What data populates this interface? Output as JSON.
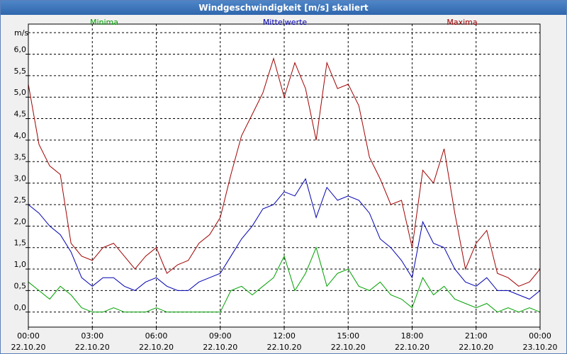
{
  "chart_data": {
    "type": "line",
    "title": "Windgeschwindigkeit [m/s] skaliert",
    "ylabel": "m/s",
    "xlabel": "",
    "ylim": [
      -0.35,
      6.7
    ],
    "xlim": [
      0,
      24
    ],
    "grid": true,
    "legend_position": "top",
    "yticks": [
      "0,0",
      "0,5",
      "1,0",
      "1,5",
      "2,0",
      "2,5",
      "3,0",
      "3,5",
      "4,0",
      "4,5",
      "5,0",
      "5,5",
      "6,0"
    ],
    "xticks": [
      {
        "time": "00:00",
        "date": "22.10.20"
      },
      {
        "time": "03:00",
        "date": "22.10.20"
      },
      {
        "time": "06:00",
        "date": "22.10.20"
      },
      {
        "time": "09:00",
        "date": "22.10.20"
      },
      {
        "time": "12:00",
        "date": "22.10.20"
      },
      {
        "time": "15:00",
        "date": "22.10.20"
      },
      {
        "time": "18:00",
        "date": "22.10.20"
      },
      {
        "time": "21:00",
        "date": "22.10.20"
      },
      {
        "time": "00:00",
        "date": "23.10.20"
      }
    ],
    "series": [
      {
        "name": "Minima",
        "color": "#00a000",
        "x": [
          0,
          0.5,
          1,
          1.5,
          2,
          2.5,
          3,
          3.5,
          4,
          4.5,
          5,
          5.5,
          6,
          6.5,
          7,
          7.5,
          8,
          8.5,
          9,
          9.5,
          10,
          10.5,
          11,
          11.5,
          12,
          12.5,
          13,
          13.5,
          14,
          14.5,
          15,
          15.5,
          16,
          16.5,
          17,
          17.5,
          18,
          18.5,
          19,
          19.5,
          20,
          20.5,
          21,
          21.5,
          22,
          22.5,
          23,
          23.5,
          24
        ],
        "values": [
          0.7,
          0.5,
          0.3,
          0.6,
          0.4,
          0.1,
          0.0,
          0.0,
          0.1,
          0.0,
          0.0,
          0.0,
          0.1,
          0.0,
          0.0,
          0.0,
          0.0,
          0.0,
          0.0,
          0.5,
          0.6,
          0.4,
          0.6,
          0.8,
          1.3,
          0.5,
          0.9,
          1.5,
          0.6,
          0.9,
          1.0,
          0.6,
          0.5,
          0.7,
          0.4,
          0.3,
          0.1,
          0.8,
          0.4,
          0.6,
          0.3,
          0.2,
          0.1,
          0.2,
          0.0,
          0.1,
          0.0,
          0.1,
          0.0
        ]
      },
      {
        "name": "Mittelwerte",
        "color": "#0000b0",
        "x": [
          0,
          0.5,
          1,
          1.5,
          2,
          2.5,
          3,
          3.5,
          4,
          4.5,
          5,
          5.5,
          6,
          6.5,
          7,
          7.5,
          8,
          8.5,
          9,
          9.5,
          10,
          10.5,
          11,
          11.5,
          12,
          12.5,
          13,
          13.5,
          14,
          14.5,
          15,
          15.5,
          16,
          16.5,
          17,
          17.5,
          18,
          18.5,
          19,
          19.5,
          20,
          20.5,
          21,
          21.5,
          22,
          22.5,
          23,
          23.5,
          24
        ],
        "values": [
          2.5,
          2.3,
          2.0,
          1.8,
          1.4,
          0.8,
          0.6,
          0.8,
          0.8,
          0.6,
          0.5,
          0.7,
          0.8,
          0.6,
          0.5,
          0.5,
          0.7,
          0.8,
          0.9,
          1.3,
          1.7,
          2.0,
          2.4,
          2.5,
          2.8,
          2.7,
          3.1,
          2.2,
          2.9,
          2.6,
          2.7,
          2.6,
          2.3,
          1.7,
          1.5,
          1.2,
          0.8,
          2.1,
          1.6,
          1.5,
          1.0,
          0.7,
          0.6,
          0.8,
          0.5,
          0.5,
          0.4,
          0.3,
          0.5
        ]
      },
      {
        "name": "Maxima",
        "color": "#a00000",
        "x": [
          0,
          0.5,
          1,
          1.5,
          2,
          2.5,
          3,
          3.5,
          4,
          4.5,
          5,
          5.5,
          6,
          6.5,
          7,
          7.5,
          8,
          8.5,
          9,
          9.5,
          10,
          10.5,
          11,
          11.5,
          12,
          12.5,
          13,
          13.5,
          14,
          14.5,
          15,
          15.5,
          16,
          16.5,
          17,
          17.5,
          18,
          18.5,
          19,
          19.5,
          20,
          20.5,
          21,
          21.5,
          22,
          22.5,
          23,
          23.5,
          24
        ],
        "values": [
          5.3,
          3.9,
          3.4,
          3.2,
          1.6,
          1.3,
          1.2,
          1.5,
          1.6,
          1.3,
          1.0,
          1.3,
          1.5,
          0.9,
          1.1,
          1.2,
          1.6,
          1.8,
          2.2,
          3.2,
          4.1,
          4.6,
          5.1,
          5.9,
          5.0,
          5.8,
          5.2,
          4.0,
          5.8,
          5.2,
          5.3,
          4.8,
          3.6,
          3.1,
          2.5,
          2.6,
          1.5,
          3.3,
          3.0,
          3.8,
          2.3,
          1.0,
          1.6,
          1.9,
          0.9,
          0.8,
          0.6,
          0.7,
          1.0
        ]
      }
    ]
  }
}
